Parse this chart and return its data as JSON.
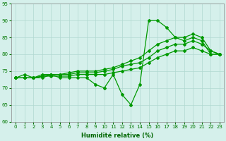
{
  "title": "",
  "xlabel": "Humidité relative (%)",
  "ylabel": "",
  "background_color": "#d5f0eb",
  "grid_color": "#b0d8d0",
  "line_color": "#009900",
  "xlim": [
    -0.5,
    23.5
  ],
  "ylim": [
    60,
    95
  ],
  "yticks": [
    60,
    65,
    70,
    75,
    80,
    85,
    90,
    95
  ],
  "xticks": [
    0,
    1,
    2,
    3,
    4,
    5,
    6,
    7,
    8,
    9,
    10,
    11,
    12,
    13,
    14,
    15,
    16,
    17,
    18,
    19,
    20,
    21,
    22,
    23
  ],
  "y_zigzag": [
    73,
    74,
    73,
    73,
    74,
    73,
    73,
    73,
    73,
    71,
    70,
    74,
    68,
    65,
    71,
    90,
    90,
    88,
    85,
    84,
    85,
    84,
    80,
    80
  ],
  "y_line1": [
    73,
    73,
    73,
    74,
    74,
    74,
    74.5,
    75,
    75,
    75,
    75.5,
    76,
    77,
    78,
    79,
    81,
    83,
    84,
    85,
    85,
    86,
    85,
    81,
    80
  ],
  "y_line2": [
    73,
    73,
    73,
    73.5,
    74,
    74,
    74,
    74.5,
    74.5,
    74.5,
    75,
    75.5,
    76.5,
    77,
    77.5,
    79,
    81,
    82,
    83,
    83,
    84,
    83,
    81,
    80
  ],
  "y_line3": [
    73,
    73,
    73,
    73.5,
    73.5,
    73.5,
    73.5,
    74,
    74,
    74,
    74,
    74.5,
    75,
    75.5,
    76,
    77.5,
    79,
    80,
    81,
    81,
    82,
    81,
    80,
    80
  ],
  "marker": "D",
  "marker_size": 2,
  "line_width": 0.9
}
